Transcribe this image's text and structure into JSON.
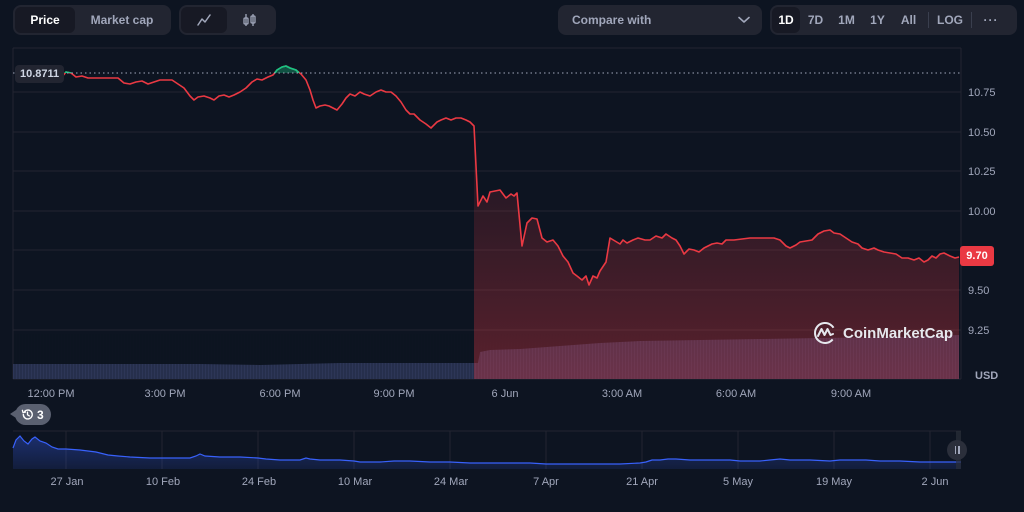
{
  "toolbar": {
    "type_tabs": [
      {
        "label": "Price",
        "active": true
      },
      {
        "label": "Market cap",
        "active": false
      }
    ],
    "chart_type_tabs": [
      {
        "icon": "line-chart-icon",
        "active": true
      },
      {
        "icon": "candlestick-icon",
        "active": false
      }
    ],
    "compare": {
      "label": "Compare with",
      "icon": "chevron-down-icon"
    },
    "range_tabs": [
      {
        "label": "1D",
        "active": true
      },
      {
        "label": "7D",
        "active": false
      },
      {
        "label": "1M",
        "active": false
      },
      {
        "label": "1Y",
        "active": false
      },
      {
        "label": "All",
        "active": false
      }
    ],
    "log_label": "LOG",
    "more_label": "···"
  },
  "chart": {
    "open_price_tag": "10.8711",
    "last_price_tag": "9.70",
    "currency": "USD",
    "watermark": "CoinMarketCap",
    "history_badge_count": "3",
    "colors": {
      "background": "#0d1421",
      "down_line": "#ea3943",
      "up_line": "#16c784",
      "volume": "#2d3657",
      "navigator_line": "#3861fb",
      "grid": "#222531"
    }
  },
  "chart_data": [
    {
      "type": "line",
      "title": "Price (1D)",
      "xlabel": "",
      "ylabel": "USD",
      "x_tick_labels": [
        "12:00 PM",
        "3:00 PM",
        "6:00 PM",
        "9:00 PM",
        "6 Jun",
        "3:00 AM",
        "6:00 AM",
        "9:00 AM"
      ],
      "y_tick_labels": [
        "9.25",
        "9.50",
        "9.75",
        "10.00",
        "10.25",
        "10.50",
        "10.75"
      ],
      "ylim": [
        9.2,
        10.9
      ],
      "reference_line": 10.8711,
      "last_value": 9.7,
      "grid": true,
      "series": [
        {
          "name": "Price",
          "x": [
            "11:00 AM",
            "11:30 AM",
            "12:00 PM",
            "12:30 PM",
            "1:00 PM",
            "1:30 PM",
            "2:00 PM",
            "2:30 PM",
            "3:00 PM",
            "3:30 PM",
            "4:00 PM",
            "4:30 PM",
            "5:00 PM",
            "5:30 PM",
            "6:00 PM",
            "6:20 PM",
            "6:40 PM",
            "7:00 PM",
            "7:30 PM",
            "8:00 PM",
            "8:30 PM",
            "9:00 PM",
            "9:30 PM",
            "10:00 PM",
            "10:30 PM",
            "11:00 PM",
            "11:15 PM",
            "11:30 PM",
            "11:45 PM",
            "12:00 AM",
            "12:30 AM",
            "1:00 AM",
            "1:30 AM",
            "2:00 AM",
            "2:30 AM",
            "3:00 AM",
            "3:30 AM",
            "4:00 AM",
            "4:30 AM",
            "5:00 AM",
            "5:30 AM",
            "6:00 AM",
            "6:30 AM",
            "7:00 AM",
            "7:30 AM",
            "8:00 AM",
            "8:30 AM",
            "9:00 AM",
            "9:30 AM",
            "10:00 AM",
            "10:30 AM",
            "11:00 AM",
            "11:15 AM"
          ],
          "values": [
            10.86,
            10.88,
            10.85,
            10.85,
            10.84,
            10.82,
            10.83,
            10.84,
            10.81,
            10.74,
            10.72,
            10.73,
            10.78,
            10.85,
            10.88,
            10.86,
            10.66,
            10.68,
            10.73,
            10.76,
            10.74,
            10.7,
            10.65,
            10.6,
            10.6,
            10.54,
            10.05,
            10.1,
            10.12,
            10.08,
            9.85,
            9.9,
            9.73,
            9.62,
            9.54,
            9.82,
            9.85,
            9.8,
            9.84,
            9.8,
            9.76,
            9.82,
            9.82,
            9.84,
            9.84,
            9.82,
            9.84,
            9.88,
            9.85,
            9.78,
            9.76,
            9.74,
            9.7
          ]
        },
        {
          "name": "Volume (relative)",
          "values_note": "flat low volume until ~11 PM, then step up and gradual rise to max near end",
          "values": [
            0.33,
            0.33,
            0.33,
            0.32,
            0.32,
            0.32,
            0.31,
            0.31,
            0.31,
            0.31,
            0.32,
            0.34,
            0.36,
            0.36,
            0.36,
            0.4,
            0.66,
            0.7,
            0.75,
            0.8,
            0.85,
            0.88,
            0.9,
            0.9,
            0.92,
            0.92,
            0.92,
            0.93,
            0.93,
            0.94,
            0.95,
            0.96
          ]
        }
      ]
    },
    {
      "type": "area",
      "title": "Navigator (All time)",
      "x_tick_labels": [
        "27 Jan",
        "10 Feb",
        "24 Feb",
        "10 Mar",
        "24 Mar",
        "7 Apr",
        "21 Apr",
        "5 May",
        "19 May",
        "2 Jun"
      ],
      "values_note": "relative shape; starts high (~100%) in late Jan and declines, flattening around 25–30% of range",
      "values": [
        72,
        95,
        82,
        92,
        80,
        68,
        62,
        60,
        52,
        48,
        45,
        46,
        48,
        44,
        40,
        38,
        44,
        36,
        34,
        32,
        30,
        28,
        30,
        28,
        26,
        25,
        24,
        26,
        28,
        34,
        35,
        32,
        30,
        32,
        30,
        31,
        32,
        28,
        28,
        26
      ]
    }
  ]
}
